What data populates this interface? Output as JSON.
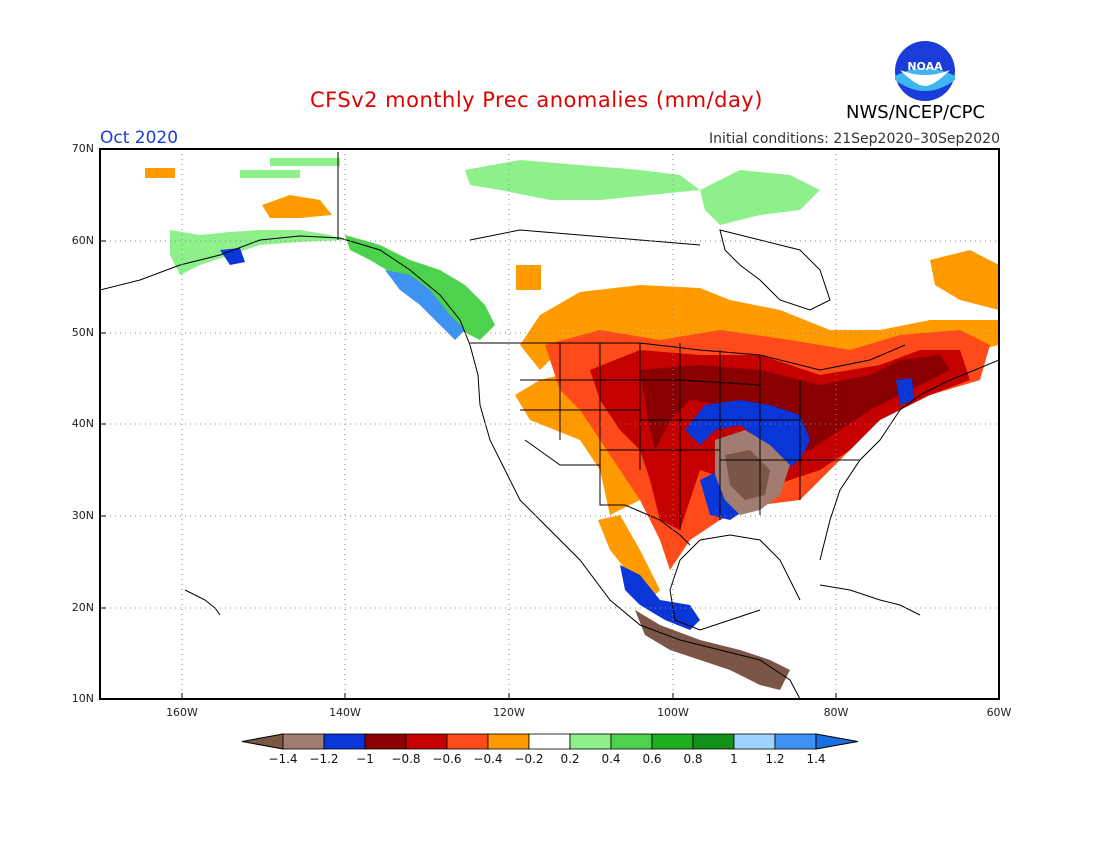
{
  "header": {
    "title": "CFSv2 monthly Prec anomalies (mm/day)",
    "agency": "NWS/NCEP/CPC",
    "month": "Oct 2020",
    "initial_conditions": "Initial conditions: 21Sep2020–30Sep2020",
    "logo_text": "NOAA"
  },
  "axes": {
    "lat_labels": [
      "70N",
      "60N",
      "50N",
      "40N",
      "30N",
      "20N",
      "10N"
    ],
    "lon_labels": [
      "160W",
      "140W",
      "120W",
      "100W",
      "80W",
      "60W"
    ],
    "lat_range": [
      10,
      70
    ],
    "lon_range": [
      -170,
      -60
    ],
    "grid": "dotted"
  },
  "colorbar": {
    "ticks": [
      "−1.4",
      "−1.2",
      "−1",
      "−0.8",
      "−0.6",
      "−0.4",
      "−0.2",
      "0.2",
      "0.4",
      "0.6",
      "0.8",
      "1",
      "1.2",
      "1.4"
    ],
    "colors": [
      "#7b5545",
      "#a07d70",
      "#0a36d8",
      "#8a0000",
      "#c40000",
      "#ff4a1a",
      "#ff9a00",
      "#ffffff",
      "#8ef08a",
      "#4cd24c",
      "#1fae1f",
      "#12901a",
      "#9ed4ff",
      "#3d92f2",
      "#1a6ee0"
    ]
  },
  "colors": {
    "title": "#e00000",
    "month": "#1a3cd8",
    "map_frame": "#000000",
    "grid": "#888888"
  }
}
